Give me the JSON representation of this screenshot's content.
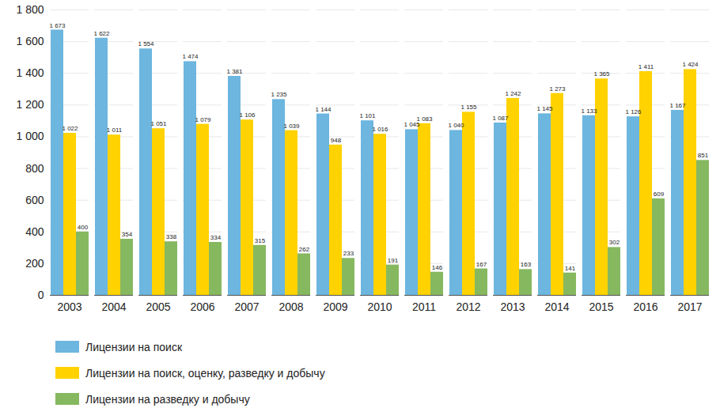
{
  "chart_data": {
    "type": "bar",
    "categories": [
      "2003",
      "2004",
      "2005",
      "2006",
      "2007",
      "2008",
      "2009",
      "2010",
      "2011",
      "2012",
      "2013",
      "2014",
      "2015",
      "2016",
      "2017"
    ],
    "series": [
      {
        "name": "Лицензии на поиск",
        "color": "#6cb6df",
        "values": [
          1673,
          1622,
          1554,
          1474,
          1381,
          1235,
          1144,
          1101,
          1045,
          1040,
          1087,
          1145,
          1133,
          1126,
          1167
        ],
        "value_labels": [
          "1 673",
          "1 622",
          "1 554",
          "1 474",
          "1 381",
          "1 235",
          "1 144",
          "1 101",
          "1 045",
          "1 040",
          "1 087",
          "1 145",
          "1 133",
          "1 126",
          "1 167"
        ]
      },
      {
        "name": "Лицензии на поиск, оценку, разведку и добычу",
        "color": "#ffd200",
        "values": [
          1022,
          1011,
          1051,
          1079,
          1106,
          1039,
          948,
          1016,
          1083,
          1155,
          1242,
          1273,
          1365,
          1411,
          1424
        ],
        "value_labels": [
          "1 022",
          "1 011",
          "1 051",
          "1 079",
          "1 106",
          "1 039",
          "948",
          "1 016",
          "1 083",
          "1 155",
          "1 242",
          "1 273",
          "1 365",
          "1 411",
          "1 424"
        ]
      },
      {
        "name": "Лицензии на разведку и добычу",
        "color": "#86b860",
        "values": [
          400,
          354,
          338,
          334,
          315,
          262,
          233,
          191,
          146,
          167,
          163,
          141,
          302,
          609,
          851
        ]
      }
    ],
    "ylim": [
      0,
      1800
    ],
    "yticks": [
      0,
      200,
      400,
      600,
      800,
      {
        "value": 1000,
        "label": "1 000"
      },
      {
        "value": 1200,
        "label": "1 200"
      },
      {
        "value": 1400,
        "label": "1 400"
      },
      {
        "value": 1600,
        "label": "1 600"
      },
      {
        "value": 1800,
        "label": "1 800"
      }
    ],
    "grid": true,
    "data_labels": true,
    "legend": "bottom"
  }
}
